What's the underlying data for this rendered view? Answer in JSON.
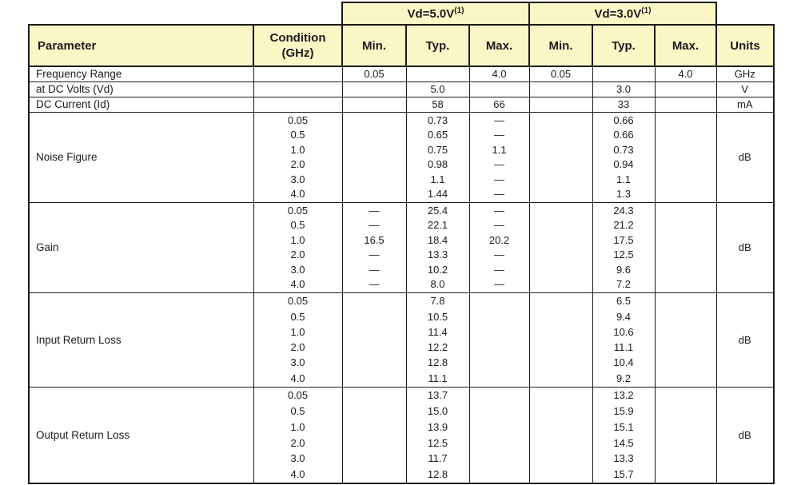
{
  "table": {
    "colors": {
      "header_bg": "#FBF6C6",
      "border": "#1a1a1a"
    },
    "group_headers": [
      {
        "text": "Vd=5.0V",
        "sup": "(1)"
      },
      {
        "text": "Vd=3.0V",
        "sup": "(1)"
      }
    ],
    "columns": {
      "parameter": "Parameter",
      "condition_line1": "Condition",
      "condition_line2": "(GHz)",
      "min": "Min.",
      "typ": "Typ.",
      "max": "Max.",
      "units": "Units"
    },
    "simple_rows": [
      {
        "parameter": "Frequency Range",
        "vd5_min": "0.05",
        "vd5_max": "4.0",
        "vd3_min": "0.05",
        "vd3_max": "4.0",
        "units": "GHz"
      },
      {
        "parameter": "at DC Volts (Vd)",
        "vd5_typ": "5.0",
        "vd3_typ": "3.0",
        "units": "V"
      },
      {
        "parameter": "DC Current (Id)",
        "vd5_typ": "58",
        "vd5_max": "66",
        "vd3_typ": "33",
        "units": "mA"
      }
    ],
    "group_rows": [
      {
        "parameter": "Noise Figure",
        "conditions": [
          "0.05",
          "0.5",
          "1.0",
          "2.0",
          "3.0",
          "4.0"
        ],
        "vd5_typ": [
          "0.73",
          "0.65",
          "0.75",
          "0.98",
          "1.1",
          "1.44"
        ],
        "vd5_max": [
          "—",
          "—",
          "1.1",
          "—",
          "—",
          "—"
        ],
        "vd3_typ": [
          "0.66",
          "0.66",
          "0.73",
          "0.94",
          "1.1",
          "1.3"
        ],
        "units": "dB"
      },
      {
        "parameter": "Gain",
        "conditions": [
          "0.05",
          "0.5",
          "1.0",
          "2.0",
          "3.0",
          "4.0"
        ],
        "vd5_min": [
          "—",
          "—",
          "16.5",
          "—",
          "—",
          "—"
        ],
        "vd5_typ": [
          "25.4",
          "22.1",
          "18.4",
          "13.3",
          "10.2",
          "8.0"
        ],
        "vd5_max": [
          "—",
          "—",
          "20.2",
          "—",
          "—",
          "—"
        ],
        "vd3_typ": [
          "24.3",
          "21.2",
          "17.5",
          "12.5",
          "9.6",
          "7.2"
        ],
        "units": "dB"
      },
      {
        "parameter": "Input Return Loss",
        "conditions": [
          "0.05",
          "0.5",
          "1.0",
          "2.0",
          "3.0",
          "4.0"
        ],
        "vd5_typ": [
          "7.8",
          "10.5",
          "11.4",
          "12.2",
          "12.8",
          "11.1"
        ],
        "vd3_typ": [
          "6.5",
          "9.4",
          "10.6",
          "11.1",
          "10.4",
          "9.2"
        ],
        "units": "dB"
      },
      {
        "parameter": "Output Return Loss",
        "conditions": [
          "0.05",
          "0.5",
          "1.0",
          "2.0",
          "3.0",
          "4.0"
        ],
        "vd5_typ": [
          "13.7",
          "15.0",
          "13.9",
          "12.5",
          "11.7",
          "12.8"
        ],
        "vd3_typ": [
          "13.2",
          "15.9",
          "15.1",
          "14.5",
          "13.3",
          "15.7"
        ],
        "units": "dB"
      }
    ]
  }
}
